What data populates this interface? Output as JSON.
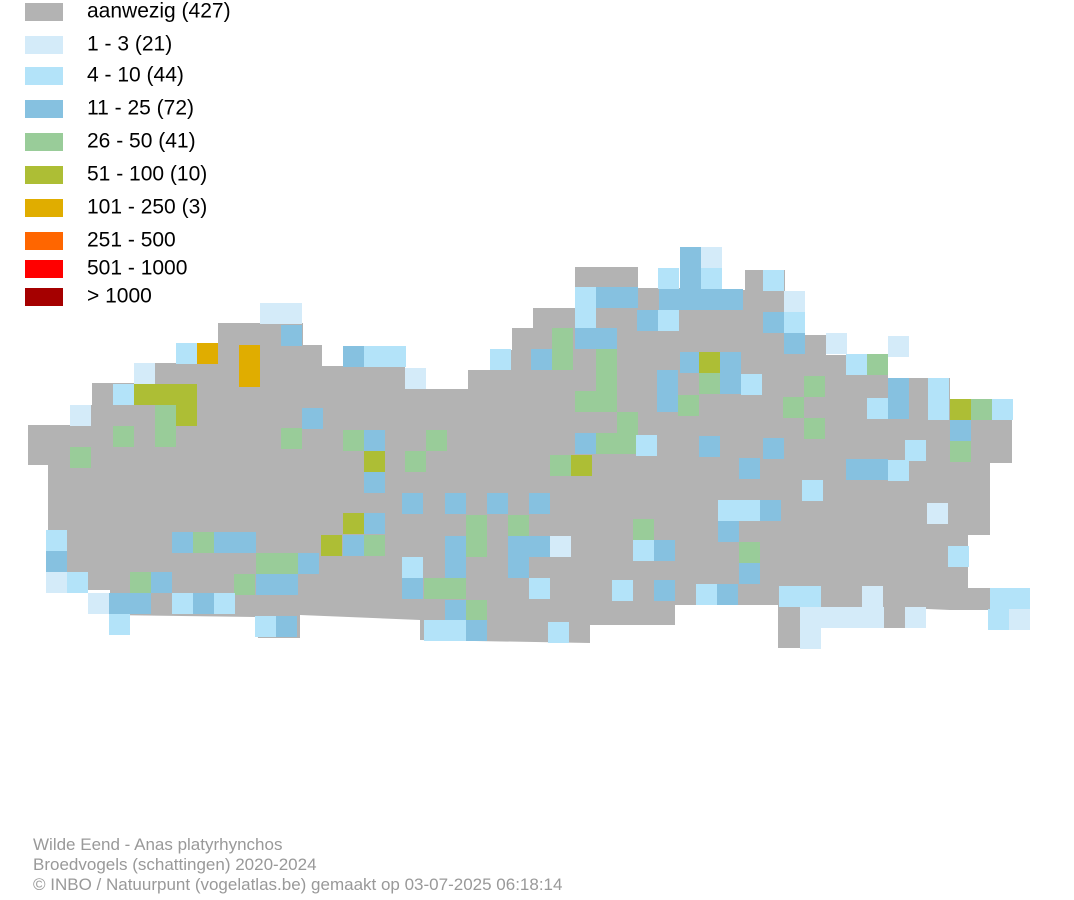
{
  "legend": [
    {
      "label": "aanwezig (427)",
      "color": "#b3b3b3"
    },
    {
      "label": "1 - 3 (21)",
      "color": "#d4ebf9"
    },
    {
      "label": "4 - 10 (44)",
      "color": "#b3e3f9"
    },
    {
      "label": "11 - 25 (72)",
      "color": "#86c1e0"
    },
    {
      "label": "26 - 50 (41)",
      "color": "#99cc99"
    },
    {
      "label": "51 - 100 (10)",
      "color": "#adbe35"
    },
    {
      "label": "101 - 250 (3)",
      "color": "#e0ad00"
    },
    {
      "label": "251 - 500",
      "color": "#ff6600"
    },
    {
      "label": "501 - 1000",
      "color": "#ff0000"
    },
    {
      "label": "> 1000",
      "color": "#a50000"
    }
  ],
  "footer": {
    "lines": [
      "Wilde Eend - Anas platyrhynchos",
      "Broedvogels (schattingen) 2020-2024",
      "© INBO / Natuurpunt (vogelatlas.be) gemaakt op 03-07-2025 06:18:14"
    ]
  }
}
